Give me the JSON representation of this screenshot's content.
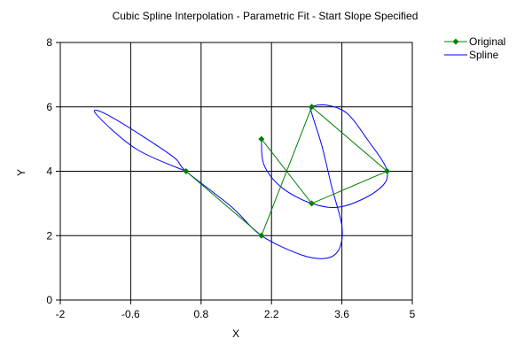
{
  "chart_data": {
    "type": "line",
    "title": "Cubic Spline Interpolation - Parametric Fit - Start Slope Specified",
    "xlabel": "X",
    "ylabel": "Y",
    "xlim": [
      -2,
      5
    ],
    "ylim": [
      0,
      8
    ],
    "xticks": [
      -2,
      -0.6,
      0.8,
      2.2,
      3.6,
      5
    ],
    "xtick_labels": [
      "-2",
      "-0.6",
      "0.8",
      "2.2",
      "3.6",
      "5"
    ],
    "yticks": [
      0,
      2,
      4,
      6,
      8
    ],
    "ytick_labels": [
      "0",
      "2",
      "4",
      "6",
      "8"
    ],
    "grid": true,
    "legend_position": "top-right",
    "series": [
      {
        "name": "Original",
        "color": "#008000",
        "marker": "diamond",
        "x": [
          0.5,
          2.0,
          3.0,
          4.5,
          3.0,
          2.0
        ],
        "y": [
          4.0,
          2.0,
          6.0,
          4.0,
          3.0,
          5.0
        ]
      },
      {
        "name": "Spline",
        "color": "#0000ff",
        "marker": "none",
        "x": [
          0.5,
          -0.5,
          -1.3,
          -1.0,
          0.2,
          0.5,
          1.4,
          2.0,
          2.8,
          3.3,
          3.55,
          3.6,
          3.4,
          3.2,
          3.0,
          3.0,
          3.3,
          3.7,
          4.1,
          4.5,
          4.3,
          3.6,
          3.0,
          2.4,
          2.05,
          2.0
        ],
        "y": [
          4.0,
          4.7,
          5.8,
          5.7,
          4.5,
          4.0,
          2.9,
          2.0,
          1.4,
          1.3,
          1.6,
          2.3,
          3.5,
          4.8,
          5.8,
          6.0,
          6.05,
          5.8,
          5.0,
          4.0,
          3.4,
          2.9,
          3.0,
          3.5,
          4.2,
          5.0
        ]
      }
    ]
  }
}
